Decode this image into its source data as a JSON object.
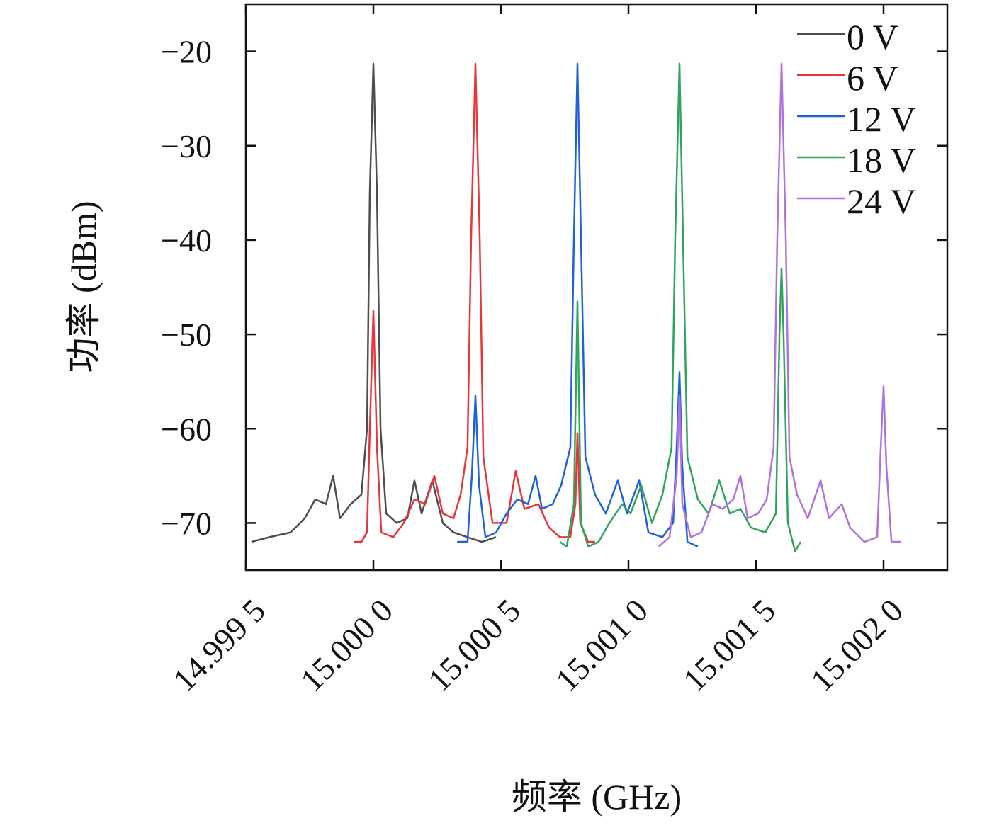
{
  "chart_data": {
    "type": "line",
    "xlabel": "频率 (GHz)",
    "ylabel": "功率 (dBm)",
    "xlim": [
      14.9995,
      15.00225
    ],
    "ylim": [
      -75,
      -15
    ],
    "xticks": [
      {
        "value": 14.9995,
        "label": "14.999 5"
      },
      {
        "value": 15.0,
        "label": "15.000 0"
      },
      {
        "value": 15.0005,
        "label": "15.000 5"
      },
      {
        "value": 15.001,
        "label": "15.001 0"
      },
      {
        "value": 15.0015,
        "label": "15.001 5"
      },
      {
        "value": 15.002,
        "label": "15.002 0"
      }
    ],
    "yticks": [
      {
        "value": -70,
        "label": "−70"
      },
      {
        "value": -60,
        "label": "−60"
      },
      {
        "value": -50,
        "label": "−50"
      },
      {
        "value": -40,
        "label": "−40"
      },
      {
        "value": -30,
        "label": "−30"
      },
      {
        "value": -20,
        "label": "−20"
      }
    ],
    "legend": "upper right",
    "series": [
      {
        "name": "0 V",
        "color": "#4d4d4d",
        "x": [
          14.999522,
          14.999592,
          14.999675,
          14.999731,
          14.999772,
          14.999814,
          14.999842,
          14.999869,
          14.999911,
          14.999953,
          14.999975,
          14.999986,
          15.0,
          15.000014,
          15.000028,
          15.00005,
          15.000092,
          15.000133,
          15.000161,
          15.000189,
          15.000231,
          15.000272,
          15.000314,
          15.000369,
          15.000425,
          15.000481
        ],
        "values": [
          -72,
          -71.5,
          -71,
          -69.5,
          -67.5,
          -68,
          -65,
          -69.5,
          -68,
          -67,
          -60,
          -35,
          -21.3,
          -35,
          -60,
          -69,
          -70,
          -69.5,
          -65.5,
          -69,
          -65.5,
          -70,
          -71,
          -71.5,
          -72,
          -71.5
        ]
      },
      {
        "name": "6 V",
        "color": "#e8353a",
        "x": [
          14.999925,
          14.999953,
          14.999975,
          14.999986,
          15.0,
          15.000014,
          15.000031,
          15.000078,
          15.000119,
          15.000161,
          15.000203,
          15.000239,
          15.000272,
          15.000314,
          15.000342,
          15.000369,
          15.000383,
          15.0004,
          15.000417,
          15.000431,
          15.000467,
          15.000522,
          15.000558,
          15.000592,
          15.000647,
          15.000689,
          15.000731,
          15.000772,
          15.000792,
          15.0008,
          15.000811,
          15.000842,
          15.000869
        ],
        "values": [
          -72,
          -72,
          -71,
          -60,
          -47.5,
          -62,
          -71,
          -71.5,
          -70,
          -67.5,
          -68,
          -65,
          -69,
          -69.5,
          -67,
          -62,
          -40,
          -21.3,
          -40,
          -63,
          -70,
          -70,
          -64.5,
          -68.5,
          -68,
          -70.5,
          -71.5,
          -71.5,
          -68,
          -60.5,
          -70,
          -72,
          -72
        ]
      },
      {
        "name": "12 V",
        "color": "#1f62d8",
        "x": [
          15.000328,
          15.000369,
          15.000386,
          15.0004,
          15.000414,
          15.000439,
          15.000481,
          15.000522,
          15.000564,
          15.000606,
          15.000636,
          15.000661,
          15.000703,
          15.000736,
          15.000772,
          15.000786,
          15.0008,
          15.000814,
          15.000831,
          15.000869,
          15.000911,
          15.000958,
          15.000994,
          15.001042,
          15.001078,
          15.001133,
          15.001175,
          15.001189,
          15.0012,
          15.001211,
          15.001231,
          15.001272
        ],
        "values": [
          -72,
          -72,
          -65,
          -56.5,
          -66,
          -71.5,
          -71,
          -69,
          -67.5,
          -68,
          -65,
          -68.5,
          -68,
          -66,
          -62,
          -40,
          -21.3,
          -40,
          -63,
          -67,
          -69,
          -65.5,
          -69,
          -65.5,
          -71,
          -71.5,
          -70,
          -62,
          -54,
          -64,
          -72,
          -72.5
        ]
      },
      {
        "name": "18 V",
        "color": "#2ea45c",
        "x": [
          15.000731,
          15.000758,
          15.000786,
          15.0008,
          15.000814,
          15.000842,
          15.000883,
          15.000925,
          15.000975,
          15.001008,
          15.00105,
          15.001092,
          15.001133,
          15.001169,
          15.001183,
          15.0012,
          15.001214,
          15.001231,
          15.001272,
          15.001314,
          15.001356,
          15.001397,
          15.001439,
          15.001481,
          15.001536,
          15.001578,
          15.001592,
          15.0016,
          15.001608,
          15.001625,
          15.001653,
          15.001675
        ],
        "values": [
          -72,
          -72.5,
          -68,
          -46.5,
          -70,
          -72.5,
          -72,
          -70,
          -68,
          -69,
          -66,
          -70,
          -67,
          -62,
          -40,
          -21.3,
          -40,
          -63,
          -67.5,
          -69,
          -65.5,
          -69,
          -68.5,
          -70.5,
          -71,
          -69,
          -50,
          -43,
          -50,
          -70,
          -73,
          -72
        ]
      },
      {
        "name": "24 V",
        "color": "#b072e0",
        "x": [
          15.001119,
          15.001161,
          15.001189,
          15.0012,
          15.001211,
          15.001244,
          15.001286,
          15.001328,
          15.001369,
          15.001411,
          15.001439,
          15.001467,
          15.001508,
          15.001542,
          15.001569,
          15.001583,
          15.0016,
          15.001617,
          15.001631,
          15.001661,
          15.001703,
          15.001753,
          15.001786,
          15.001836,
          15.001869,
          15.001925,
          15.001975,
          15.001989,
          15.002,
          15.002011,
          15.002031,
          15.002069
        ],
        "values": [
          -72.5,
          -71.5,
          -65,
          -56.5,
          -68,
          -71.5,
          -71,
          -68,
          -68.5,
          -67.5,
          -65,
          -69.5,
          -69,
          -67.5,
          -62,
          -40,
          -21.3,
          -40,
          -63,
          -67,
          -69.5,
          -65.5,
          -69.5,
          -68,
          -70.5,
          -72,
          -71.5,
          -62,
          -55.5,
          -64,
          -72,
          -72
        ]
      }
    ]
  }
}
